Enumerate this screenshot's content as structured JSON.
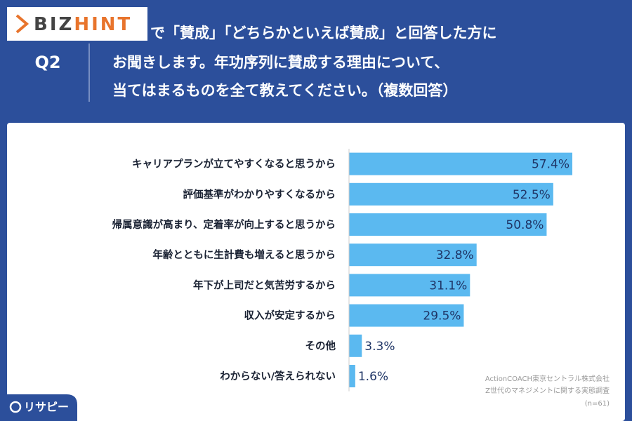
{
  "logo": {
    "parts": [
      "BIZ",
      "HINT"
    ]
  },
  "header": {
    "question_no": "Q2",
    "lines": [
      "で「賛成」「どちらかといえば賛成」と回答した方に",
      "お聞きします。年功序列に賛成する理由について、",
      "当てはまるものを全て教えてください。（複数回答）"
    ]
  },
  "chart_data": {
    "type": "bar",
    "orientation": "horizontal",
    "color": "#5bb9f0",
    "categories": [
      "キャリアプランが立てやすくなると思うから",
      "評価基準がわかりやすくなるから",
      "帰属意識が高まり、定着率が向上すると思うから",
      "年齢とともに生計費も増えると思うから",
      "年下が上司だと気苦労するから",
      "収入が安定するから",
      "その他",
      "わからない/答えられない"
    ],
    "values": [
      57.4,
      52.5,
      50.8,
      32.8,
      31.1,
      29.5,
      3.3,
      1.6
    ],
    "value_labels": [
      "57.4%",
      "52.5%",
      "50.8%",
      "32.8%",
      "31.1%",
      "29.5%",
      "3.3%",
      "1.6%"
    ]
  },
  "source": {
    "lines": [
      "ActionCOACH東京セントラル株式会社",
      "Z世代のマネジメントに関する実態調査",
      "(n=61)"
    ]
  },
  "brand": "リサピー"
}
